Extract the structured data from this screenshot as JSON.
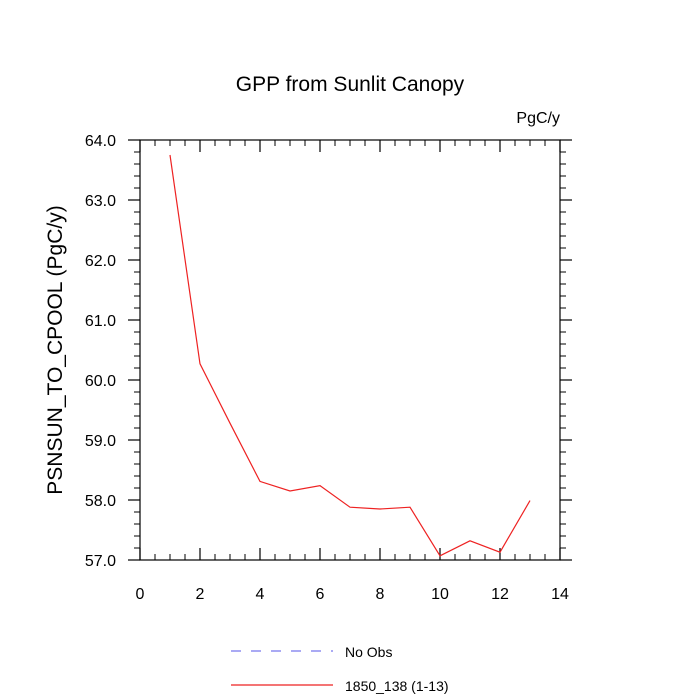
{
  "chart_data": {
    "type": "line",
    "title": "GPP from Sunlit Canopy",
    "units_label": "PgC/y",
    "ylabel": "PSNSUN_TO_CPOOL  (PgC/y)",
    "xlabel": "",
    "xlim": [
      0,
      14
    ],
    "ylim": [
      57.0,
      64.0
    ],
    "x_ticks": [
      0,
      2,
      4,
      6,
      8,
      10,
      12,
      14
    ],
    "x_tick_labels": [
      "0",
      "2",
      "4",
      "6",
      "8",
      "10",
      "12",
      "14"
    ],
    "y_ticks": [
      57.0,
      58.0,
      59.0,
      60.0,
      61.0,
      62.0,
      63.0,
      64.0
    ],
    "y_tick_labels": [
      "57.0",
      "58.0",
      "59.0",
      "60.0",
      "61.0",
      "62.0",
      "63.0",
      "64.0"
    ],
    "grid": false,
    "legend_placement": "bottom",
    "series": [
      {
        "name": "No Obs",
        "color": "#7777ee",
        "dash": true,
        "x": [],
        "values": []
      },
      {
        "name": "1850_138 (1-13)",
        "color": "#ee2222",
        "dash": false,
        "x": [
          1,
          2,
          3,
          4,
          5,
          6,
          7,
          8,
          9,
          10,
          11,
          12,
          13
        ],
        "values": [
          63.75,
          60.27,
          59.28,
          58.31,
          58.15,
          58.24,
          57.88,
          57.85,
          57.88,
          57.07,
          57.32,
          57.13,
          57.99
        ]
      }
    ]
  }
}
